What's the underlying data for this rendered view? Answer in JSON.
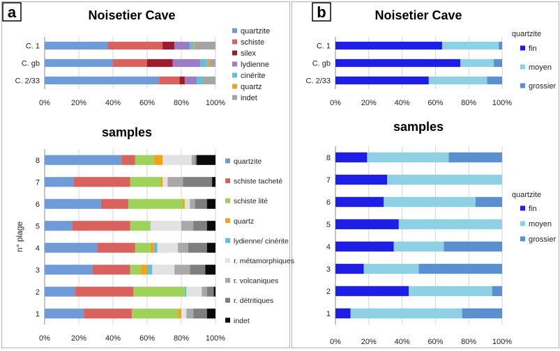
{
  "panel_labels": {
    "a": "a",
    "b": "b"
  },
  "chart_data": [
    {
      "id": "a-top",
      "type": "bar",
      "orientation": "horizontal",
      "stacked": "percent",
      "title": "Noisetier Cave",
      "categories": [
        "C. 1",
        "C. gb",
        "C. 2/33"
      ],
      "xlim": [
        0,
        100
      ],
      "xticks": [
        "0%",
        "20%",
        "40%",
        "60%",
        "80%",
        "100%"
      ],
      "legend_position": "right",
      "series": [
        {
          "name": "quartzite",
          "color": "#6f9bd6",
          "values": [
            37,
            40,
            67
          ]
        },
        {
          "name": "schiste",
          "color": "#d9625e",
          "values": [
            32,
            20,
            12
          ]
        },
        {
          "name": "silex",
          "color": "#9b1b2f",
          "values": [
            7,
            15,
            3
          ]
        },
        {
          "name": "lydienne",
          "color": "#9c7cc4",
          "values": [
            9,
            16,
            7
          ]
        },
        {
          "name": "cinérite",
          "color": "#5fc0dc",
          "values": [
            2,
            4,
            3
          ]
        },
        {
          "name": "quartz",
          "color": "#f2a31b",
          "values": [
            1,
            1,
            0
          ]
        },
        {
          "name": "indet",
          "color": "#a4a4a4",
          "values": [
            12,
            4,
            8
          ]
        }
      ]
    },
    {
      "id": "b-top",
      "type": "bar",
      "orientation": "horizontal",
      "stacked": "percent",
      "title": "Noisetier Cave",
      "categories": [
        "C. 1",
        "C. gb",
        "C. 2/33"
      ],
      "xlim": [
        0,
        100
      ],
      "xticks": [
        "0%",
        "20%",
        "40%",
        "60%",
        "80%",
        "100%"
      ],
      "legend_position": "right",
      "legend_title": "quartzite",
      "series": [
        {
          "name": "fin",
          "color": "#1e1ee6",
          "values": [
            64,
            75,
            56
          ]
        },
        {
          "name": "moyen",
          "color": "#8ed0e4",
          "values": [
            34,
            20,
            35
          ]
        },
        {
          "name": "grossier",
          "color": "#5a8fd0",
          "values": [
            2,
            5,
            9
          ]
        }
      ]
    },
    {
      "id": "a-bottom",
      "type": "bar",
      "orientation": "horizontal",
      "stacked": "percent",
      "title": "samples",
      "ylabel": "n° plage",
      "categories": [
        "8",
        "7",
        "6",
        "5",
        "4",
        "3",
        "2",
        "1"
      ],
      "xlim": [
        0,
        100
      ],
      "xticks": [
        "0%",
        "20%",
        "40%",
        "60%",
        "80%",
        "100%"
      ],
      "legend_position": "right",
      "series": [
        {
          "name": "quartzite",
          "color": "#6f9bd6",
          "values": [
            45,
            17,
            33,
            16,
            31,
            28,
            18,
            23
          ]
        },
        {
          "name": "schiste tacheté",
          "color": "#d9625e",
          "values": [
            8,
            33,
            16,
            34,
            22,
            22,
            34,
            28
          ]
        },
        {
          "name": "schiste lité",
          "color": "#9fd25a",
          "values": [
            11,
            18,
            32,
            12,
            9,
            6,
            30,
            27
          ]
        },
        {
          "name": "quartz",
          "color": "#f2a31b",
          "values": [
            5,
            1,
            1,
            0,
            2,
            4,
            0,
            2
          ]
        },
        {
          "name": "lydienne/ cinérite",
          "color": "#5fc0dc",
          "values": [
            0,
            0,
            0,
            0,
            2,
            3,
            1,
            0
          ]
        },
        {
          "name": "r. métamorphiques",
          "color": "#e2e2e2",
          "values": [
            17,
            3,
            3,
            18,
            12,
            13,
            9,
            3
          ]
        },
        {
          "name": "r. volcaniques",
          "color": "#a8a8a8",
          "values": [
            2,
            9,
            3,
            7,
            6,
            9,
            3,
            4
          ]
        },
        {
          "name": "r. détritiques",
          "color": "#7e7e7e",
          "values": [
            1,
            17,
            7,
            8,
            11,
            9,
            4,
            8
          ]
        },
        {
          "name": "indet",
          "color": "#0a0a0a",
          "values": [
            11,
            2,
            5,
            5,
            5,
            6,
            1,
            5
          ]
        }
      ]
    },
    {
      "id": "b-bottom",
      "type": "bar",
      "orientation": "horizontal",
      "stacked": "percent",
      "title": "samples",
      "categories": [
        "8",
        "7",
        "6",
        "5",
        "4",
        "3",
        "2",
        "1"
      ],
      "xlim": [
        0,
        100
      ],
      "xticks": [
        "0%",
        "20%",
        "40%",
        "60%",
        "80%",
        "100%"
      ],
      "legend_position": "right",
      "legend_title": "quartzite",
      "series": [
        {
          "name": "fin",
          "color": "#1e1ee6",
          "values": [
            19,
            31,
            29,
            38,
            35,
            17,
            44,
            9
          ]
        },
        {
          "name": "moyen",
          "color": "#8ed0e4",
          "values": [
            49,
            69,
            55,
            62,
            30,
            33,
            50,
            67
          ]
        },
        {
          "name": "grossier",
          "color": "#5a8fd0",
          "values": [
            32,
            0,
            16,
            0,
            35,
            50,
            6,
            24
          ]
        }
      ]
    }
  ]
}
